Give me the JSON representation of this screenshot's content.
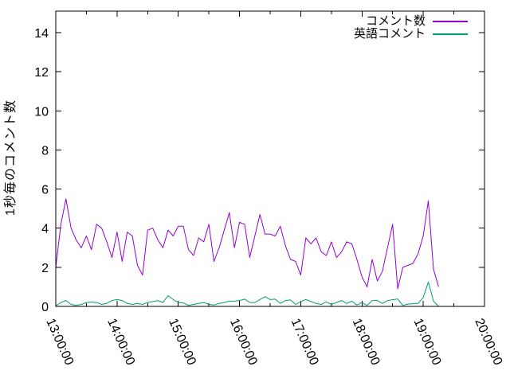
{
  "chart_data": {
    "type": "line",
    "title": "",
    "xlabel": "",
    "ylabel": "1秒毎のコメント数",
    "grid": false,
    "legend_position": "inside top-right",
    "x_range": [
      "13:00:00",
      "20:00:00"
    ],
    "ylim": [
      0,
      15.1
    ],
    "y_ticks": [
      "0",
      "2",
      "4",
      "6",
      "8",
      "10",
      "12",
      "14"
    ],
    "x_ticks": [
      "13:00:00",
      "14:00:00",
      "15:00:00",
      "16:00:00",
      "17:00:00",
      "18:00:00",
      "19:00:00",
      "20:00:00"
    ],
    "x_minor_ticks": [
      "13:30:00",
      "14:30:00",
      "15:30:00",
      "16:30:00",
      "17:30:00",
      "18:30:00",
      "19:30:00"
    ],
    "x": [
      "13:00:00",
      "13:05:00",
      "13:10:00",
      "13:15:00",
      "13:20:00",
      "13:25:00",
      "13:30:00",
      "13:35:00",
      "13:40:00",
      "13:45:00",
      "13:50:00",
      "13:55:00",
      "14:00:00",
      "14:05:00",
      "14:10:00",
      "14:15:00",
      "14:20:00",
      "14:25:00",
      "14:30:00",
      "14:35:00",
      "14:40:00",
      "14:45:00",
      "14:50:00",
      "14:55:00",
      "15:00:00",
      "15:05:00",
      "15:10:00",
      "15:15:00",
      "15:20:00",
      "15:25:00",
      "15:30:00",
      "15:35:00",
      "15:40:00",
      "15:45:00",
      "15:50:00",
      "15:55:00",
      "16:00:00",
      "16:05:00",
      "16:10:00",
      "16:15:00",
      "16:20:00",
      "16:25:00",
      "16:30:00",
      "16:35:00",
      "16:40:00",
      "16:45:00",
      "16:50:00",
      "16:55:00",
      "17:00:00",
      "17:05:00",
      "17:10:00",
      "17:15:00",
      "17:20:00",
      "17:25:00",
      "17:30:00",
      "17:35:00",
      "17:40:00",
      "17:45:00",
      "17:50:00",
      "17:55:00",
      "18:00:00",
      "18:05:00",
      "18:10:00",
      "18:15:00",
      "18:20:00",
      "18:25:00",
      "18:30:00",
      "18:35:00",
      "18:40:00",
      "18:45:00",
      "18:50:00",
      "18:55:00",
      "19:00:00",
      "19:05:00",
      "19:10:00",
      "19:15:00"
    ],
    "series": [
      {
        "name": "コメント数",
        "color": "#9400d3",
        "values": [
          2.0,
          4.2,
          5.5,
          4.0,
          3.4,
          3.0,
          3.6,
          2.9,
          4.2,
          4.0,
          3.3,
          2.5,
          3.8,
          2.3,
          3.8,
          3.6,
          2.1,
          1.6,
          3.9,
          4.0,
          3.4,
          3.0,
          3.9,
          3.6,
          4.1,
          4.1,
          2.9,
          2.6,
          3.5,
          3.3,
          4.2,
          2.3,
          3.0,
          3.9,
          4.8,
          3.0,
          4.3,
          4.2,
          2.5,
          3.6,
          4.7,
          3.7,
          3.7,
          3.6,
          4.1,
          3.1,
          2.4,
          2.3,
          1.6,
          3.5,
          3.2,
          3.5,
          2.8,
          2.6,
          3.3,
          2.5,
          2.8,
          3.3,
          3.2,
          2.4,
          1.5,
          1.0,
          2.4,
          1.3,
          1.8,
          3.0,
          4.2,
          0.9,
          2.0,
          2.1,
          2.2,
          2.7,
          3.6,
          5.4,
          1.9,
          1.0
        ]
      },
      {
        "name": "英語コメント",
        "color": "#009e73",
        "values": [
          0.02,
          0.2,
          0.3,
          0.1,
          0.05,
          0.1,
          0.2,
          0.22,
          0.2,
          0.1,
          0.15,
          0.3,
          0.35,
          0.3,
          0.15,
          0.1,
          0.15,
          0.1,
          0.2,
          0.25,
          0.3,
          0.2,
          0.55,
          0.35,
          0.2,
          0.18,
          0.05,
          0.1,
          0.15,
          0.2,
          0.1,
          0.07,
          0.15,
          0.2,
          0.27,
          0.27,
          0.3,
          0.37,
          0.2,
          0.2,
          0.35,
          0.5,
          0.35,
          0.37,
          0.15,
          0.3,
          0.33,
          0.1,
          0.25,
          0.35,
          0.25,
          0.15,
          0.1,
          0.23,
          0.1,
          0.2,
          0.3,
          0.15,
          0.27,
          0.07,
          0.2,
          0.05,
          0.3,
          0.3,
          0.15,
          0.3,
          0.34,
          0.38,
          0.05,
          0.12,
          0.14,
          0.16,
          0.45,
          1.25,
          0.27,
          0.0
        ]
      }
    ]
  },
  "colors": {
    "background": "#ffffff",
    "axis": "#000000",
    "series1": "#9400d3",
    "series2": "#009e73"
  }
}
